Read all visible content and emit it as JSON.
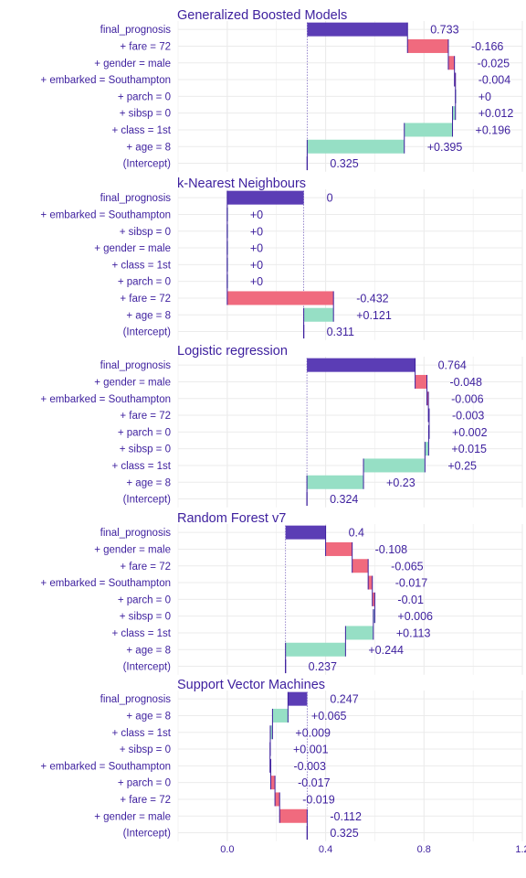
{
  "colors": {
    "prediction": "#5b3db5",
    "negative": "#f06a7e",
    "positive": "#96dfc5",
    "text": "#3d1f9e",
    "grid": "#ebebeb"
  },
  "chart_data": {
    "type": "bar",
    "subtype": "waterfall / break-down",
    "xlim": [
      -0.2,
      1.2
    ],
    "x_ticks": [
      0.0,
      0.4,
      0.8,
      1.2
    ],
    "x_tick_labels": [
      "0.0",
      "0.4",
      "0.8",
      "1.2"
    ],
    "grid": true,
    "panels": [
      {
        "title": "Generalized Boosted Models",
        "rows": [
          {
            "label": "final_prognosis",
            "value": 0.733,
            "text": "0.733",
            "kind": "prediction"
          },
          {
            "label": "+ fare = 72",
            "value": -0.166,
            "text": "-0.166",
            "kind": "contribution"
          },
          {
            "label": "+ gender = male",
            "value": -0.025,
            "text": "-0.025",
            "kind": "contribution"
          },
          {
            "label": "+ embarked = Southampton",
            "value": -0.004,
            "text": "-0.004",
            "kind": "contribution"
          },
          {
            "label": "+ parch = 0",
            "value": 0,
            "text": "+0",
            "kind": "contribution"
          },
          {
            "label": "+ sibsp = 0",
            "value": 0.012,
            "text": "+0.012",
            "kind": "contribution"
          },
          {
            "label": "+ class = 1st",
            "value": 0.196,
            "text": "+0.196",
            "kind": "contribution"
          },
          {
            "label": "+ age = 8",
            "value": 0.395,
            "text": "+0.395",
            "kind": "contribution"
          },
          {
            "label": "(Intercept)",
            "value": 0.325,
            "text": "0.325",
            "kind": "intercept"
          }
        ]
      },
      {
        "title": "k-Nearest Neighbours",
        "rows": [
          {
            "label": "final_prognosis",
            "value": 0,
            "text": "0",
            "kind": "prediction"
          },
          {
            "label": "+ embarked = Southampton",
            "value": 0,
            "text": "+0",
            "kind": "contribution"
          },
          {
            "label": "+ sibsp = 0",
            "value": 0,
            "text": "+0",
            "kind": "contribution"
          },
          {
            "label": "+ gender = male",
            "value": 0,
            "text": "+0",
            "kind": "contribution"
          },
          {
            "label": "+ class = 1st",
            "value": 0,
            "text": "+0",
            "kind": "contribution"
          },
          {
            "label": "+ parch = 0",
            "value": 0,
            "text": "+0",
            "kind": "contribution"
          },
          {
            "label": "+ fare = 72",
            "value": -0.432,
            "text": "-0.432",
            "kind": "contribution"
          },
          {
            "label": "+ age = 8",
            "value": 0.121,
            "text": "+0.121",
            "kind": "contribution"
          },
          {
            "label": "(Intercept)",
            "value": 0.311,
            "text": "0.311",
            "kind": "intercept"
          }
        ]
      },
      {
        "title": "Logistic regression",
        "rows": [
          {
            "label": "final_prognosis",
            "value": 0.764,
            "text": "0.764",
            "kind": "prediction"
          },
          {
            "label": "+ gender = male",
            "value": -0.048,
            "text": "-0.048",
            "kind": "contribution"
          },
          {
            "label": "+ embarked = Southampton",
            "value": -0.006,
            "text": "-0.006",
            "kind": "contribution"
          },
          {
            "label": "+ fare = 72",
            "value": -0.003,
            "text": "-0.003",
            "kind": "contribution"
          },
          {
            "label": "+ parch = 0",
            "value": 0.002,
            "text": "+0.002",
            "kind": "contribution"
          },
          {
            "label": "+ sibsp = 0",
            "value": 0.015,
            "text": "+0.015",
            "kind": "contribution"
          },
          {
            "label": "+ class = 1st",
            "value": 0.25,
            "text": "+0.25",
            "kind": "contribution"
          },
          {
            "label": "+ age = 8",
            "value": 0.23,
            "text": "+0.23",
            "kind": "contribution"
          },
          {
            "label": "(Intercept)",
            "value": 0.324,
            "text": "0.324",
            "kind": "intercept"
          }
        ]
      },
      {
        "title": "Random Forest v7",
        "rows": [
          {
            "label": "final_prognosis",
            "value": 0.4,
            "text": "0.4",
            "kind": "prediction"
          },
          {
            "label": "+ gender = male",
            "value": -0.108,
            "text": "-0.108",
            "kind": "contribution"
          },
          {
            "label": "+ fare = 72",
            "value": -0.065,
            "text": "-0.065",
            "kind": "contribution"
          },
          {
            "label": "+ embarked = Southampton",
            "value": -0.017,
            "text": "-0.017",
            "kind": "contribution"
          },
          {
            "label": "+ parch = 0",
            "value": -0.01,
            "text": "-0.01",
            "kind": "contribution"
          },
          {
            "label": "+ sibsp = 0",
            "value": 0.006,
            "text": "+0.006",
            "kind": "contribution"
          },
          {
            "label": "+ class = 1st",
            "value": 0.113,
            "text": "+0.113",
            "kind": "contribution"
          },
          {
            "label": "+ age = 8",
            "value": 0.244,
            "text": "+0.244",
            "kind": "contribution"
          },
          {
            "label": "(Intercept)",
            "value": 0.237,
            "text": "0.237",
            "kind": "intercept"
          }
        ]
      },
      {
        "title": "Support Vector Machines",
        "rows": [
          {
            "label": "final_prognosis",
            "value": 0.247,
            "text": "0.247",
            "kind": "prediction"
          },
          {
            "label": "+ age = 8",
            "value": 0.065,
            "text": "+0.065",
            "kind": "contribution"
          },
          {
            "label": "+ class = 1st",
            "value": 0.009,
            "text": "+0.009",
            "kind": "contribution"
          },
          {
            "label": "+ sibsp = 0",
            "value": 0.001,
            "text": "+0.001",
            "kind": "contribution"
          },
          {
            "label": "+ embarked = Southampton",
            "value": -0.003,
            "text": "-0.003",
            "kind": "contribution"
          },
          {
            "label": "+ parch = 0",
            "value": -0.017,
            "text": "-0.017",
            "kind": "contribution"
          },
          {
            "label": "+ fare = 72",
            "value": -0.019,
            "text": "-0.019",
            "kind": "contribution"
          },
          {
            "label": "+ gender = male",
            "value": -0.112,
            "text": "-0.112",
            "kind": "contribution"
          },
          {
            "label": "(Intercept)",
            "value": 0.325,
            "text": "0.325",
            "kind": "intercept"
          }
        ]
      }
    ]
  }
}
